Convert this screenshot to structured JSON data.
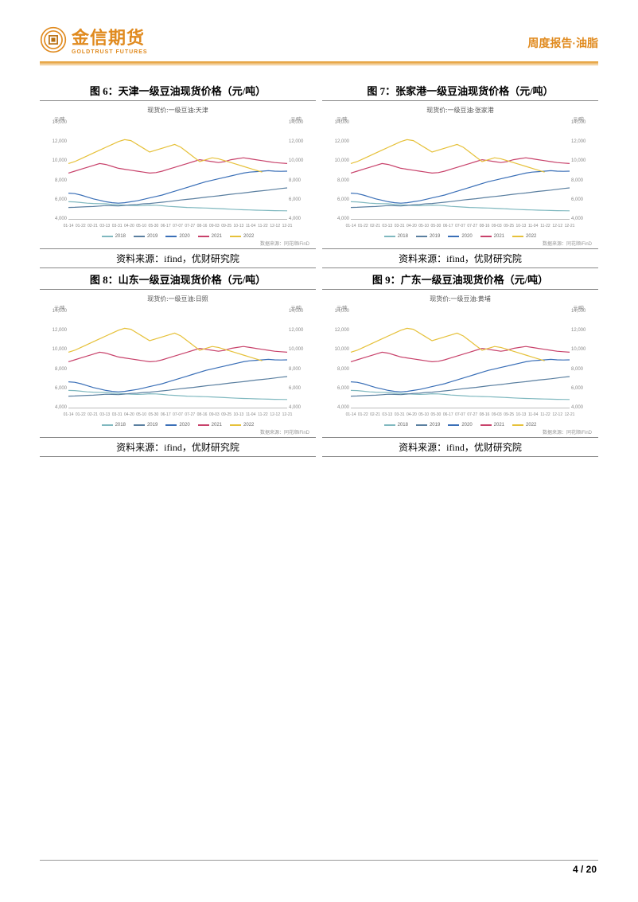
{
  "brand": {
    "name_cn": "金信期货",
    "name_en": "GOLDTRUST FUTURES",
    "logo_orange": "#e08a1e",
    "logo_inner": "#b86f10"
  },
  "header": {
    "report_type": "周度报告",
    "separator": "·",
    "category": "油脂",
    "accent_color": "#e08a1e",
    "rule_color": "#e8a84a"
  },
  "footer": {
    "page": "4",
    "sep": " / ",
    "total": "20"
  },
  "chart_common": {
    "yticks": [
      "14,000",
      "12,000",
      "10,000",
      "8,000",
      "6,000",
      "4,000"
    ],
    "ymin": 4000,
    "ymax": 14000,
    "ylabel": "元/吨",
    "xticks": [
      "01-14",
      "01-22",
      "02-21",
      "03-13",
      "03-31",
      "04-20",
      "05-10",
      "05-30",
      "06-17",
      "07-07",
      "07-27",
      "08-16",
      "09-03",
      "09-25",
      "10-13",
      "11-04",
      "11-22",
      "12-12",
      "12-21"
    ],
    "legend": [
      {
        "label": "2018",
        "color": "#7fb8bf"
      },
      {
        "label": "2019",
        "color": "#5a7fa0"
      },
      {
        "label": "2020",
        "color": "#3a6fb7"
      },
      {
        "label": "2021",
        "color": "#c8426b"
      },
      {
        "label": "2022",
        "color": "#e6c13a"
      }
    ],
    "source_text": "资料来源：ifind，优财研究院",
    "tiny_source": "数据来源：同花顺iFinD",
    "grid_color": "#cccccc",
    "text_color": "#888888",
    "series": {
      "s2018": {
        "color": "#7fb8bf",
        "values": [
          5800,
          5780,
          5720,
          5650,
          5620,
          5600,
          5580,
          5520,
          5480,
          5450,
          5400,
          5380,
          5400,
          5450,
          5430,
          5380,
          5320,
          5280,
          5240,
          5200,
          5180,
          5160,
          5140,
          5120,
          5080,
          5050,
          5020,
          4980,
          4960,
          4940,
          4920,
          4900,
          4880,
          4870,
          4860,
          4850
        ]
      },
      "s2019": {
        "color": "#5a7fa0",
        "values": [
          5200,
          5220,
          5250,
          5280,
          5300,
          5350,
          5400,
          5380,
          5360,
          5420,
          5480,
          5520,
          5580,
          5620,
          5680,
          5750,
          5820,
          5900,
          5980,
          6050,
          6120,
          6200,
          6280,
          6350,
          6420,
          6500,
          6580,
          6650,
          6720,
          6800,
          6880,
          6950,
          7020,
          7100,
          7180,
          7250
        ]
      },
      "s2020": {
        "color": "#3a6fb7",
        "values": [
          6700,
          6650,
          6500,
          6300,
          6100,
          5950,
          5800,
          5700,
          5650,
          5700,
          5800,
          5900,
          6050,
          6200,
          6350,
          6500,
          6700,
          6900,
          7100,
          7300,
          7500,
          7700,
          7900,
          8050,
          8200,
          8350,
          8500,
          8650,
          8800,
          8900,
          8950,
          9000,
          9050,
          9000,
          8980,
          9000
        ]
      },
      "s2021": {
        "color": "#c8426b",
        "values": [
          8800,
          9000,
          9200,
          9400,
          9600,
          9800,
          9700,
          9500,
          9300,
          9200,
          9100,
          9000,
          8900,
          8800,
          8850,
          9000,
          9200,
          9400,
          9600,
          9800,
          10000,
          10200,
          10100,
          10000,
          9900,
          10000,
          10200,
          10300,
          10400,
          10300,
          10200,
          10100,
          10000,
          9900,
          9850,
          9800
        ]
      },
      "s2022": {
        "color": "#e6c13a",
        "values": [
          9800,
          10000,
          10300,
          10600,
          10900,
          11200,
          11500,
          11800,
          12100,
          12300,
          12200,
          11800,
          11400,
          11000,
          11200,
          11400,
          11600,
          11800,
          11500,
          11000,
          10500,
          10000,
          10200,
          10400,
          10300,
          10100,
          9900,
          9700,
          9500,
          9300,
          9100,
          8900
        ]
      }
    }
  },
  "charts": [
    {
      "id": 6,
      "title": "图 6：天津一级豆油现货价格（元/吨）",
      "inner": "现货价:一级豆油:天津"
    },
    {
      "id": 7,
      "title": "图 7：张家港一级豆油现货价格（元/吨）",
      "inner": "现货价:一级豆油:张家港"
    },
    {
      "id": 8,
      "title": "图 8：山东一级豆油现货价格（元/吨）",
      "inner": "现货价:一级豆油:日照"
    },
    {
      "id": 9,
      "title": "图 9：广东一级豆油现货价格（元/吨）",
      "inner": "现货价:一级豆油:黄埔"
    }
  ]
}
